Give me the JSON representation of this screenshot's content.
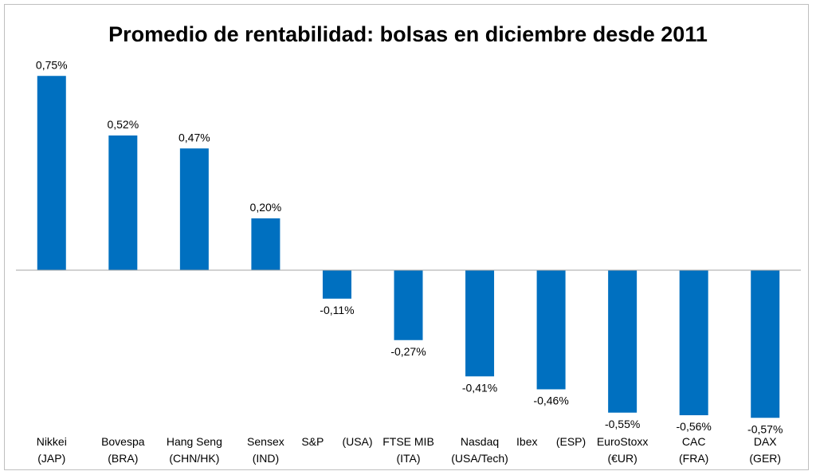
{
  "chart_data": {
    "type": "bar",
    "title": "Promedio de rentabilidad: bolsas en diciembre desde 2011",
    "xlabel": "",
    "ylabel": "",
    "categories": [
      [
        "Nikkei",
        "(JAP)"
      ],
      [
        "Bovespa",
        "(BRA)"
      ],
      [
        "Hang Seng",
        "(CHN/HK)"
      ],
      [
        "Sensex",
        "(IND)"
      ],
      [
        "S&P      (USA)"
      ],
      [
        "FTSE MIB",
        "(ITA)"
      ],
      [
        "Nasdaq",
        "(USA/Tech)"
      ],
      [
        "Ibex      (ESP)"
      ],
      [
        "EuroStoxx",
        "(€UR)"
      ],
      [
        "CAC",
        "(FRA)"
      ],
      [
        "DAX",
        "(GER)"
      ]
    ],
    "values": [
      0.75,
      0.52,
      0.47,
      0.2,
      -0.11,
      -0.27,
      -0.41,
      -0.46,
      -0.55,
      -0.56,
      -0.57
    ],
    "data_labels": [
      "0,75%",
      "0,52%",
      "0,47%",
      "0,20%",
      "-0,11%",
      "-0,27%",
      "-0,41%",
      "-0,46%",
      "-0,55%",
      "-0,56%",
      "-0,57%"
    ],
    "grid": false,
    "legend": "none",
    "colors": {
      "bar": "#0070C0",
      "axis": "#a6a6a6"
    }
  }
}
